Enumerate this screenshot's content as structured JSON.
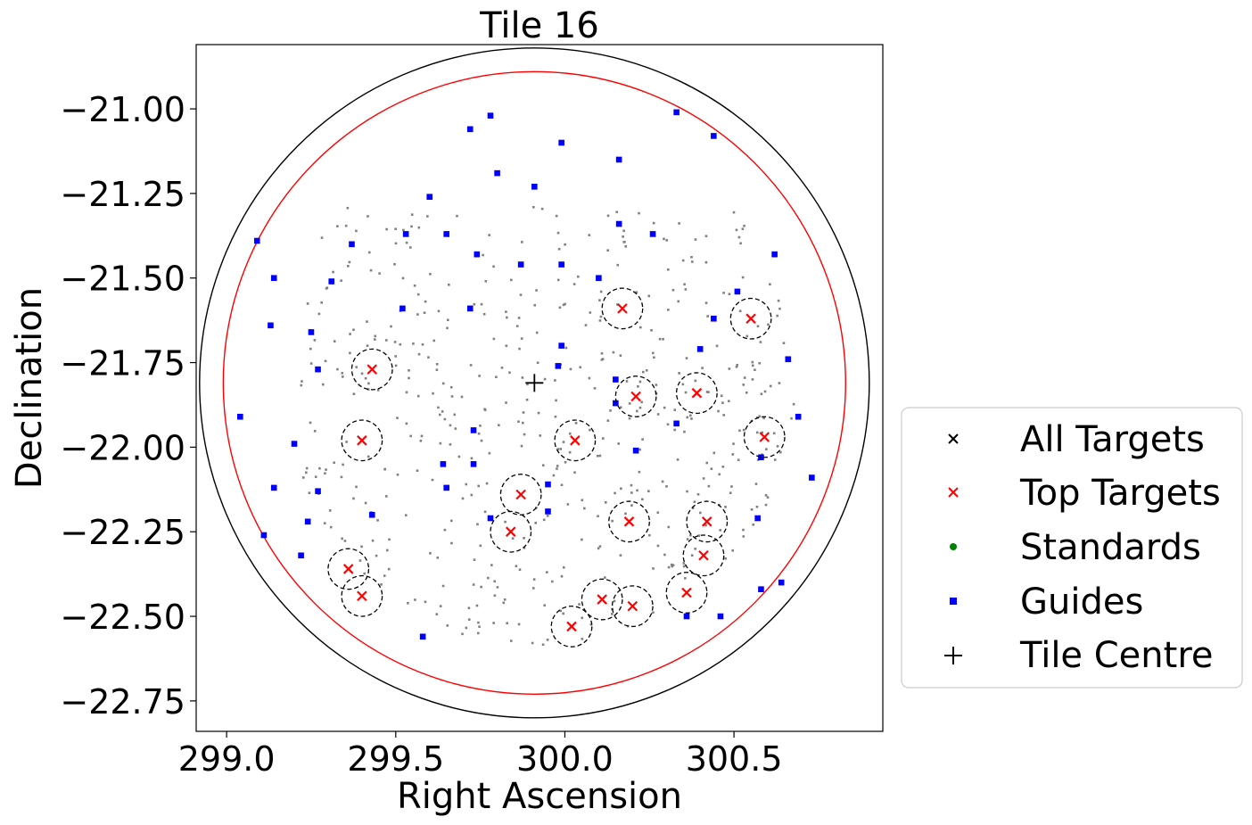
{
  "chart_data": {
    "type": "scatter",
    "title": "Tile 16",
    "xlabel": "Right Ascension",
    "ylabel": "Declination",
    "xlim": [
      298.91,
      300.94
    ],
    "ylim": [
      -22.84,
      -20.81
    ],
    "xticks": [
      299.0,
      299.5,
      300.0,
      300.5
    ],
    "xtick_labels": [
      "299.0",
      "299.5",
      "300.0",
      "300.5"
    ],
    "yticks": [
      -21.0,
      -21.25,
      -21.5,
      -21.75,
      -22.0,
      -22.25,
      -22.5,
      -22.75
    ],
    "ytick_labels": [
      "−21.00",
      "−21.25",
      "−21.50",
      "−21.75",
      "−22.00",
      "−22.25",
      "−22.50",
      "−22.75"
    ],
    "grid": false,
    "legend_position": "right",
    "tile_centre": {
      "name": "Tile Centre",
      "ra": 299.91,
      "dec": -21.81,
      "color": "#000000"
    },
    "field_circles": [
      {
        "name": "outer-field-boundary",
        "ra": 299.91,
        "dec": -21.81,
        "radius": 0.99,
        "color": "#000000"
      },
      {
        "name": "inner-field-boundary",
        "ra": 299.91,
        "dec": -21.81,
        "radius": 0.92,
        "color": "#ff0000"
      }
    ],
    "top_targets": {
      "name": "Top Targets",
      "color": "#ff0000",
      "exclusion_radius": 0.06,
      "points": [
        {
          "ra": 300.17,
          "dec": -21.59
        },
        {
          "ra": 300.55,
          "dec": -21.62
        },
        {
          "ra": 299.43,
          "dec": -21.77
        },
        {
          "ra": 300.21,
          "dec": -21.85
        },
        {
          "ra": 300.39,
          "dec": -21.84
        },
        {
          "ra": 299.4,
          "dec": -21.98
        },
        {
          "ra": 300.03,
          "dec": -21.98
        },
        {
          "ra": 300.59,
          "dec": -21.97
        },
        {
          "ra": 299.87,
          "dec": -22.14
        },
        {
          "ra": 299.84,
          "dec": -22.25
        },
        {
          "ra": 300.19,
          "dec": -22.22
        },
        {
          "ra": 300.42,
          "dec": -22.22
        },
        {
          "ra": 300.41,
          "dec": -22.32
        },
        {
          "ra": 299.36,
          "dec": -22.36
        },
        {
          "ra": 299.4,
          "dec": -22.44
        },
        {
          "ra": 300.36,
          "dec": -22.43
        },
        {
          "ra": 300.11,
          "dec": -22.45
        },
        {
          "ra": 300.2,
          "dec": -22.47
        },
        {
          "ra": 300.02,
          "dec": -22.53
        }
      ]
    },
    "guides": {
      "name": "Guides",
      "color": "#0000ff",
      "points": [
        {
          "ra": 299.78,
          "dec": -21.02
        },
        {
          "ra": 299.72,
          "dec": -21.06
        },
        {
          "ra": 300.33,
          "dec": -21.01
        },
        {
          "ra": 300.44,
          "dec": -21.08
        },
        {
          "ra": 299.99,
          "dec": -21.1
        },
        {
          "ra": 300.16,
          "dec": -21.15
        },
        {
          "ra": 299.8,
          "dec": -21.19
        },
        {
          "ra": 299.91,
          "dec": -21.23
        },
        {
          "ra": 299.6,
          "dec": -21.26
        },
        {
          "ra": 300.16,
          "dec": -21.34
        },
        {
          "ra": 300.26,
          "dec": -21.37
        },
        {
          "ra": 299.53,
          "dec": -21.37
        },
        {
          "ra": 299.65,
          "dec": -21.37
        },
        {
          "ra": 299.09,
          "dec": -21.39
        },
        {
          "ra": 299.37,
          "dec": -21.4
        },
        {
          "ra": 299.74,
          "dec": -21.43
        },
        {
          "ra": 300.62,
          "dec": -21.43
        },
        {
          "ra": 299.87,
          "dec": -21.46
        },
        {
          "ra": 299.99,
          "dec": -21.46
        },
        {
          "ra": 300.1,
          "dec": -21.5
        },
        {
          "ra": 299.14,
          "dec": -21.5
        },
        {
          "ra": 299.31,
          "dec": -21.51
        },
        {
          "ra": 300.51,
          "dec": -21.54
        },
        {
          "ra": 299.52,
          "dec": -21.59
        },
        {
          "ra": 299.72,
          "dec": -21.59
        },
        {
          "ra": 300.44,
          "dec": -21.62
        },
        {
          "ra": 299.13,
          "dec": -21.64
        },
        {
          "ra": 299.25,
          "dec": -21.66
        },
        {
          "ra": 299.99,
          "dec": -21.7
        },
        {
          "ra": 300.4,
          "dec": -21.71
        },
        {
          "ra": 300.66,
          "dec": -21.74
        },
        {
          "ra": 299.27,
          "dec": -21.77
        },
        {
          "ra": 299.98,
          "dec": -21.76
        },
        {
          "ra": 300.15,
          "dec": -21.8
        },
        {
          "ra": 300.15,
          "dec": -21.87
        },
        {
          "ra": 299.04,
          "dec": -21.91
        },
        {
          "ra": 300.69,
          "dec": -21.91
        },
        {
          "ra": 300.33,
          "dec": -21.93
        },
        {
          "ra": 299.73,
          "dec": -21.95
        },
        {
          "ra": 299.2,
          "dec": -21.99
        },
        {
          "ra": 300.21,
          "dec": -22.01
        },
        {
          "ra": 300.58,
          "dec": -22.03
        },
        {
          "ra": 299.73,
          "dec": -22.05
        },
        {
          "ra": 299.64,
          "dec": -22.05
        },
        {
          "ra": 300.73,
          "dec": -22.09
        },
        {
          "ra": 299.95,
          "dec": -22.11
        },
        {
          "ra": 299.14,
          "dec": -22.12
        },
        {
          "ra": 299.27,
          "dec": -22.13
        },
        {
          "ra": 299.65,
          "dec": -22.12
        },
        {
          "ra": 299.95,
          "dec": -22.19
        },
        {
          "ra": 299.43,
          "dec": -22.2
        },
        {
          "ra": 299.78,
          "dec": -22.21
        },
        {
          "ra": 300.57,
          "dec": -22.21
        },
        {
          "ra": 299.24,
          "dec": -22.22
        },
        {
          "ra": 299.11,
          "dec": -22.26
        },
        {
          "ra": 299.22,
          "dec": -22.32
        },
        {
          "ra": 300.64,
          "dec": -22.4
        },
        {
          "ra": 300.58,
          "dec": -22.42
        },
        {
          "ra": 300.36,
          "dec": -22.5
        },
        {
          "ra": 300.46,
          "dec": -22.5
        },
        {
          "ra": 299.58,
          "dec": -22.56
        }
      ]
    },
    "all_targets": {
      "name": "All Targets",
      "color": "#000000",
      "points_color": "#808080",
      "count": 520
    },
    "standards": {
      "name": "Standards",
      "color": "#008000",
      "points": []
    },
    "legend_entries": [
      "All Targets",
      "Top Targets",
      "Standards",
      "Guides",
      "Tile Centre"
    ]
  }
}
